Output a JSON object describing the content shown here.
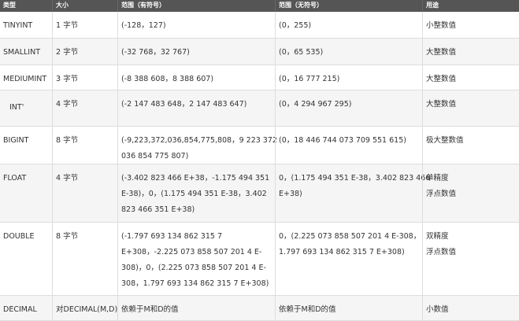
{
  "headers": [
    "类型",
    "大小",
    "范围（有符号）",
    "范围（无符号）",
    "用途"
  ],
  "rows": [
    {
      "type": "TINYINT",
      "size": "1 字节",
      "signed": [
        "(-128，127)"
      ],
      "unsigned": [
        "(0，255)"
      ],
      "usage": [
        "小整数值"
      ]
    },
    {
      "type": "SMALLINT",
      "size": "2 字节",
      "signed": [
        "(-32 768，32 767)"
      ],
      "unsigned": [
        "(0，65 535)"
      ],
      "usage": [
        "大整数值"
      ]
    },
    {
      "type": "MEDIUMINT",
      "size": "3 字节",
      "signed": [
        "(-8 388 608，8 388 607)"
      ],
      "unsigned": [
        "(0，16 777 215)"
      ],
      "usage": [
        "大整数值"
      ]
    },
    {
      "type": "INT'",
      "size": "4 字节",
      "signed": [
        "(-2 147 483 648，2 147 483 647)"
      ],
      "unsigned": [
        "(0，4 294 967 295)"
      ],
      "usage": [
        "大整数值"
      ]
    },
    {
      "type": "BIGINT",
      "size": "8 字节",
      "signed": [
        "(-9,223,372,036,854,775,808，9 223 372",
        "036 854 775 807)"
      ],
      "unsigned": [
        "(0，18 446 744 073 709 551 615)"
      ],
      "usage": [
        "极大整数值"
      ]
    },
    {
      "type": "FLOAT",
      "size": "4 字节",
      "signed": [
        "(-3.402 823 466 E+38，-1.175 494 351",
        "E-38)，0，(1.175 494 351 E-38，3.402",
        "823 466 351 E+38)"
      ],
      "unsigned": [
        "0，(1.175 494 351 E-38，3.402 823 466",
        "E+38)"
      ],
      "usage": [
        "单精度",
        "浮点数值"
      ]
    },
    {
      "type": "DOUBLE",
      "size": "8 字节",
      "signed": [
        "(-1.797 693 134 862 315 7",
        "E+308，-2.225 073 858 507 201 4 E-",
        "308)，0，(2.225 073 858 507 201 4 E-",
        "308，1.797 693 134 862 315 7 E+308)"
      ],
      "unsigned": [
        "0，(2.225 073 858 507 201 4 E-308，",
        "1.797 693 134 862 315 7 E+308)"
      ],
      "usage": [
        "双精度",
        "浮点数值"
      ]
    },
    {
      "type": "DECIMAL",
      "size": "对DECIMAL(M,D)",
      "signed": [
        "依赖于M和D的值"
      ],
      "unsigned": [
        "依赖于M和D的值"
      ],
      "usage": [
        "小数值"
      ]
    }
  ]
}
